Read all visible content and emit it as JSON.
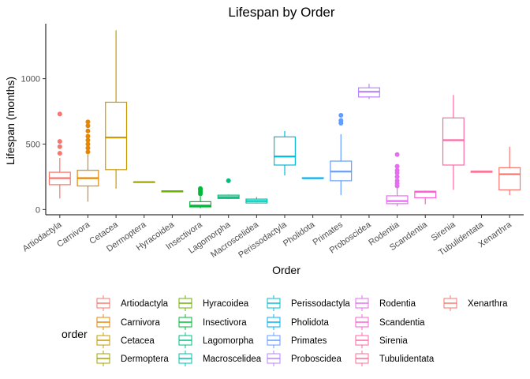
{
  "chart_data": {
    "type": "boxplot",
    "title": "Lifespan by  Order",
    "xlabel": "Order",
    "ylabel": "Lifespan (months)",
    "ylim": [
      -40,
      1420
    ],
    "yticks": [
      0,
      500,
      1000
    ],
    "grid": false,
    "legend_title": "order",
    "legend_position": "bottom",
    "categories": [
      "Artiodactyla",
      "Carnivora",
      "Cetacea",
      "Dermoptera",
      "Hyracoidea",
      "Insectivora",
      "Lagomorpha",
      "Macroscelidea",
      "Perissodactyla",
      "Pholidota",
      "Primates",
      "Proboscidea",
      "Rodentia",
      "Scandentia",
      "Sirenia",
      "Tubulidentata",
      "Xenarthra"
    ],
    "series": [
      {
        "name": "Artiodactyla",
        "color": "#F8766D",
        "min": 85,
        "q1": 190,
        "median": 240,
        "q3": 285,
        "max": 395,
        "outliers": [
          430,
          480,
          520,
          730
        ]
      },
      {
        "name": "Carnivora",
        "color": "#E58700",
        "min": 60,
        "q1": 180,
        "median": 240,
        "q3": 300,
        "max": 420,
        "outliers": [
          440,
          470,
          500,
          530,
          560,
          600,
          640,
          670
        ]
      },
      {
        "name": "Cetacea",
        "color": "#C99800",
        "min": 160,
        "q1": 305,
        "median": 550,
        "q3": 820,
        "max": 1370,
        "outliers": []
      },
      {
        "name": "Dermoptera",
        "color": "#A3A500",
        "min": 210,
        "q1": 210,
        "median": 210,
        "q3": 210,
        "max": 210,
        "outliers": []
      },
      {
        "name": "Hyracoidea",
        "color": "#6BB100",
        "min": 135,
        "q1": 135,
        "median": 140,
        "q3": 142,
        "max": 145,
        "outliers": []
      },
      {
        "name": "Insectivora",
        "color": "#00BA38",
        "min": 10,
        "q1": 20,
        "median": 30,
        "q3": 60,
        "max": 100,
        "outliers": [
          120,
          135,
          150,
          160
        ]
      },
      {
        "name": "Lagomorpha",
        "color": "#00BF7D",
        "min": 80,
        "q1": 85,
        "median": 95,
        "q3": 110,
        "max": 115,
        "outliers": [
          220
        ]
      },
      {
        "name": "Macroscelidea",
        "color": "#00C0AF",
        "min": 45,
        "q1": 50,
        "median": 65,
        "q3": 80,
        "max": 95,
        "outliers": []
      },
      {
        "name": "Perissodactyla",
        "color": "#00BCD8",
        "min": 260,
        "q1": 340,
        "median": 405,
        "q3": 555,
        "max": 600,
        "outliers": []
      },
      {
        "name": "Pholidota",
        "color": "#00B0F6",
        "min": 240,
        "q1": 240,
        "median": 240,
        "q3": 242,
        "max": 245,
        "outliers": []
      },
      {
        "name": "Primates",
        "color": "#619CFF",
        "min": 110,
        "q1": 220,
        "median": 290,
        "q3": 370,
        "max": 575,
        "outliers": [
          660,
          680,
          720
        ]
      },
      {
        "name": "Proboscidea",
        "color": "#B983FF",
        "min": 845,
        "q1": 860,
        "median": 900,
        "q3": 930,
        "max": 960,
        "outliers": []
      },
      {
        "name": "Rodentia",
        "color": "#E76BF3",
        "min": 25,
        "q1": 45,
        "median": 65,
        "q3": 105,
        "max": 165,
        "outliers": [
          180,
          200,
          220,
          250,
          280,
          300,
          330,
          420
        ]
      },
      {
        "name": "Scandentia",
        "color": "#FD61D1",
        "min": 40,
        "q1": 90,
        "median": 135,
        "q3": 140,
        "max": 145,
        "outliers": []
      },
      {
        "name": "Sirenia",
        "color": "#FF67A4",
        "min": 150,
        "q1": 340,
        "median": 530,
        "q3": 700,
        "max": 875,
        "outliers": []
      },
      {
        "name": "Tubulidentata",
        "color": "#FF6C91",
        "min": 285,
        "q1": 285,
        "median": 290,
        "q3": 292,
        "max": 295,
        "outliers": []
      },
      {
        "name": "Xenarthra",
        "color": "#F8766D",
        "min": 110,
        "q1": 150,
        "median": 270,
        "q3": 320,
        "max": 480,
        "outliers": []
      }
    ]
  }
}
